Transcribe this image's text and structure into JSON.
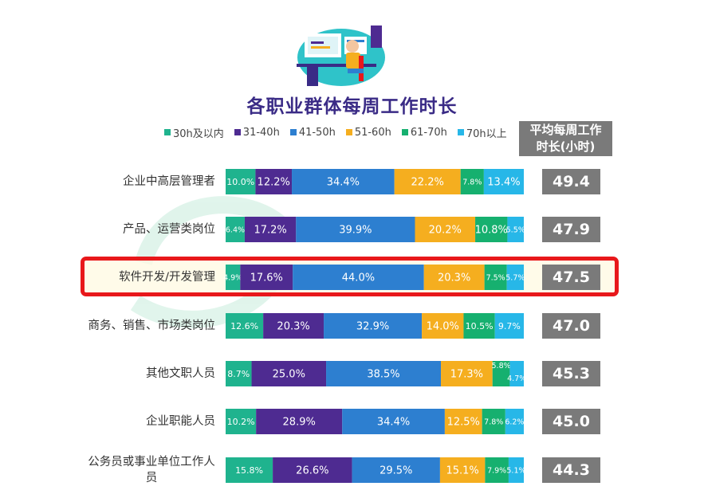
{
  "colors": {
    "series": [
      "#1fb38e",
      "#4e2b91",
      "#2d7fd0",
      "#f5ae1f",
      "#16b06f",
      "#27b7e8"
    ],
    "highlight": "#e8181b",
    "title": "#3a2b86",
    "avg_box": "#7a7a7a"
  },
  "header": {
    "avg_label_line1": "平均每周工作",
    "avg_label_line2": "时长(小时)"
  },
  "illustration": {
    "icon": "office-worker-desk-illustration"
  },
  "chart_data": {
    "type": "bar",
    "orientation": "horizontal",
    "stacked": true,
    "title": "各职业群体每周工作时长",
    "legend_position": "top",
    "categories": [
      "企业中高层管理者",
      "产品、运营类岗位",
      "软件开发/开发管理",
      "商务、销售、市场类岗位",
      "其他文职人员",
      "企业职能人员",
      "公务员或事业单位工作人员"
    ],
    "series": [
      {
        "name": "30h及以内",
        "values": [
          10.0,
          6.4,
          4.9,
          12.6,
          8.7,
          10.2,
          15.8
        ],
        "labels": [
          "10.0%",
          "6.4%",
          "4.9%",
          "12.6%",
          "8.7%",
          "10.2%",
          "15.8%"
        ]
      },
      {
        "name": "31-40h",
        "values": [
          12.2,
          17.2,
          17.6,
          20.3,
          25.0,
          28.9,
          26.6
        ],
        "labels": [
          "12.2%",
          "17.2%",
          "17.6%",
          "20.3%",
          "25.0%",
          "28.9%",
          "26.6%"
        ]
      },
      {
        "name": "41-50h",
        "values": [
          34.4,
          39.9,
          44.0,
          32.9,
          38.5,
          34.4,
          29.5
        ],
        "labels": [
          "34.4%",
          "39.9%",
          "44.0%",
          "32.9%",
          "38.5%",
          "34.4%",
          "29.5%"
        ]
      },
      {
        "name": "51-60h",
        "values": [
          22.2,
          20.2,
          20.3,
          14.0,
          17.3,
          12.5,
          15.1
        ],
        "labels": [
          "22.2%",
          "20.2%",
          "20.3%",
          "14.0%",
          "17.3%",
          "12.5%",
          "15.1%"
        ]
      },
      {
        "name": "61-70h",
        "values": [
          7.8,
          10.8,
          7.5,
          10.5,
          5.8,
          7.8,
          7.9
        ],
        "labels": [
          "7.8%",
          "10.8%",
          "7.5%",
          "10.5%",
          "5.8%",
          "7.8%",
          "7.9%"
        ]
      },
      {
        "name": "70h以上",
        "values": [
          13.4,
          5.5,
          5.7,
          9.7,
          4.7,
          6.2,
          5.1
        ],
        "labels": [
          "13.4%",
          "5.5%",
          "5.7%",
          "9.7%",
          "4.7%",
          "6.2%",
          "5.1%"
        ]
      }
    ],
    "averages": [
      "49.4",
      "47.9",
      "47.5",
      "47.0",
      "45.3",
      "45.0",
      "44.3"
    ],
    "highlighted_category": "软件开发/开发管理",
    "xlim": [
      0,
      100
    ]
  }
}
